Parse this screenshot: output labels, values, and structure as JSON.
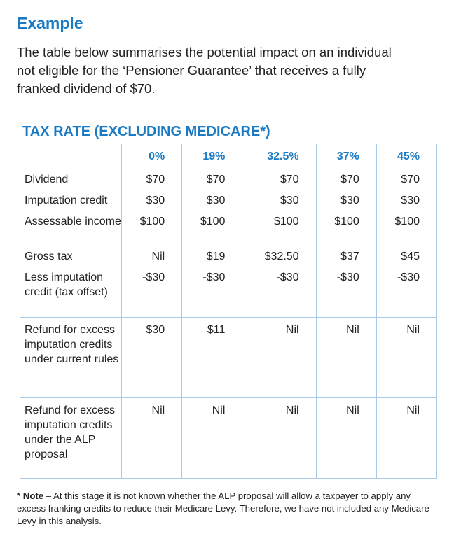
{
  "heading": "Example",
  "intro": "The table below summarises the potential impact on an individual not eligible for the ‘Pensioner Guarantee’ that receives a fully franked dividend of $70.",
  "table": {
    "title": "TAX RATE (EXCLUDING MEDICARE*)",
    "columns": [
      "0%",
      "19%",
      "32.5%",
      "37%",
      "45%"
    ],
    "rows": [
      {
        "label": "Dividend",
        "cells": [
          "$70",
          "$70",
          "$70",
          "$70",
          "$70"
        ]
      },
      {
        "label": "Imputation credit",
        "cells": [
          "$30",
          "$30",
          "$30",
          "$30",
          "$30"
        ]
      },
      {
        "label": "Assessable income",
        "cells": [
          "$100",
          "$100",
          "$100",
          "$100",
          "$100"
        ]
      },
      {
        "label": "Gross tax",
        "cells": [
          "Nil",
          "$19",
          "$32.50",
          "$37",
          "$45"
        ]
      },
      {
        "label": "Less imputation credit (tax offset)",
        "cells": [
          "-$30",
          "-$30",
          "-$30",
          "-$30",
          "-$30"
        ]
      },
      {
        "label": "Refund for excess imputation credits under current rules",
        "cells": [
          "$30",
          "$11",
          "Nil",
          "Nil",
          "Nil"
        ]
      },
      {
        "label": "Refund for excess imputation credits under the ALP proposal",
        "cells": [
          "Nil",
          "Nil",
          "Nil",
          "Nil",
          "Nil"
        ]
      }
    ]
  },
  "note": {
    "label": "* Note",
    "text": " – At this stage it is not known whether the ALP proposal will allow a taxpayer to apply any excess franking credits to reduce their Medicare Levy. Therefore, we have not included any Medicare Levy in this analysis."
  }
}
